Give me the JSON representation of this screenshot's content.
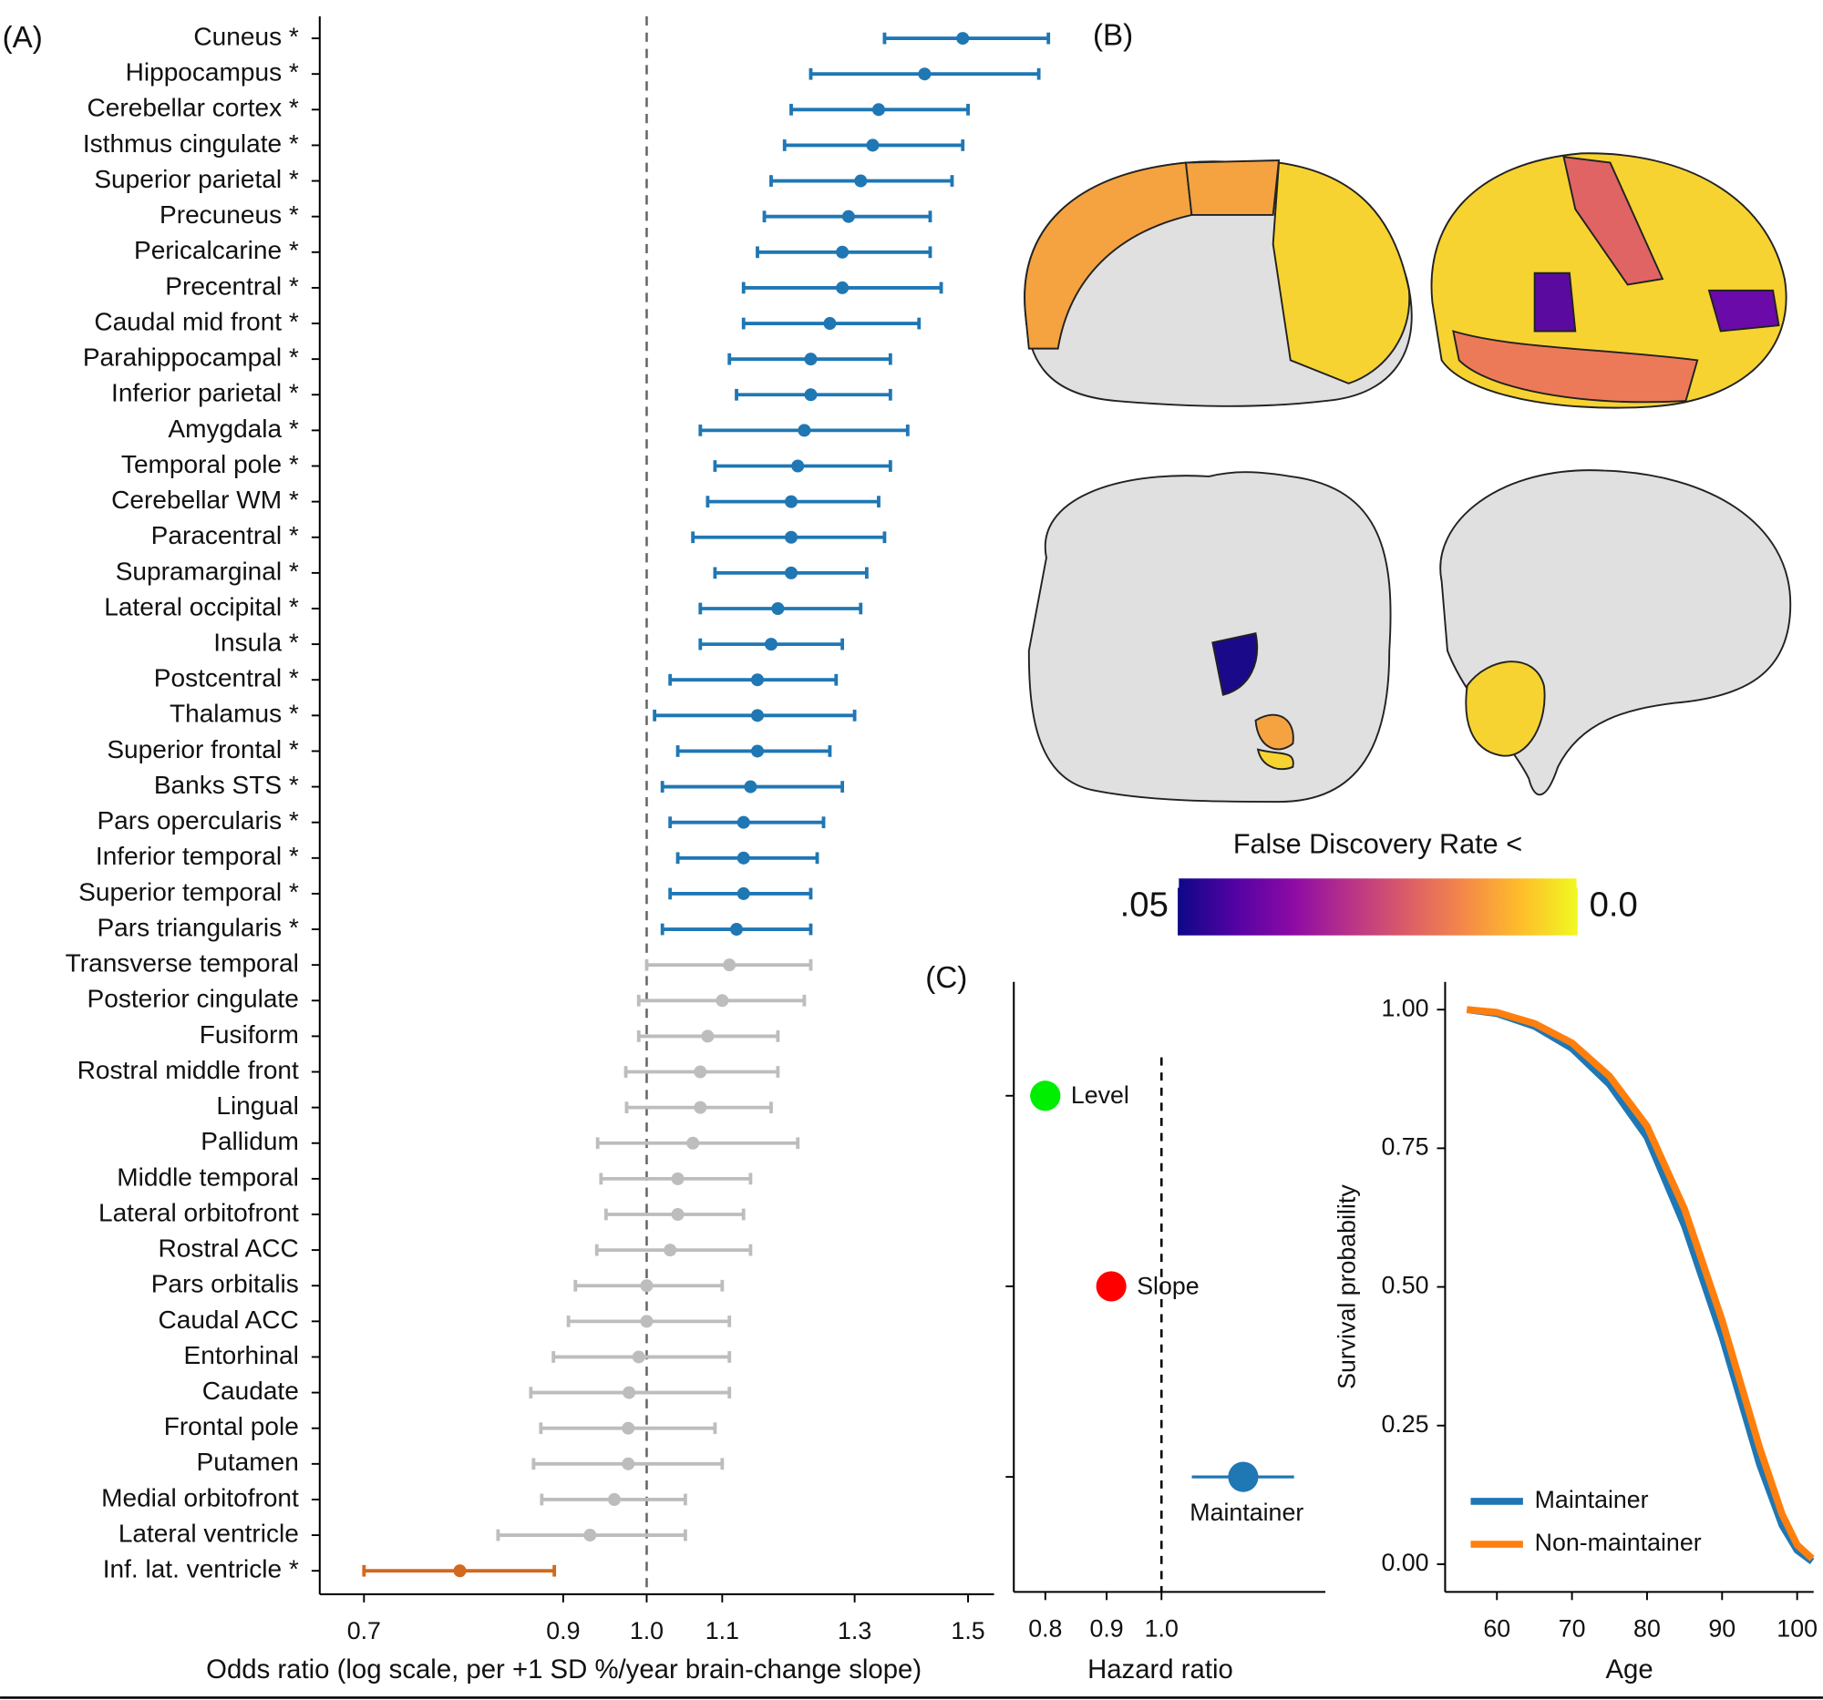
{
  "chart_data": [
    {
      "type": "forest",
      "panel": "(A)",
      "x_label": "Odds ratio (log scale, per +1 SD %/year brain-change slope)",
      "log_x": true,
      "xlim": [
        0.662,
        1.55
      ],
      "xticks": [
        0.7,
        0.9,
        {
          "value": 1,
          "label": "1.0"
        },
        1.1,
        1.3,
        1.5
      ],
      "reference": 1,
      "categories": [
        "Cuneus *",
        "Hippocampus *",
        "Cerebellar cortex *",
        "Isthmus cingulate *",
        "Superior parietal *",
        "Precuneus *",
        "Pericalcarine *",
        "Precentral *",
        "Caudal mid front *",
        "Parahippocampal *",
        "Inferior parietal *",
        "Amygdala *",
        "Temporal pole *",
        "Cerebellar WM *",
        "Paracentral *",
        "Supramarginal *",
        "Lateral occipital *",
        "Insula *",
        "Postcentral *",
        "Thalamus *",
        "Superior frontal *",
        "Banks STS *",
        "Pars opercularis *",
        "Inferior temporal *",
        "Superior temporal *",
        "Pars triangularis *",
        "Transverse temporal",
        "Posterior cingulate",
        "Fusiform",
        "Rostral middle front",
        "Lingual",
        "Pallidum",
        "Middle temporal",
        "Lateral orbitofront",
        "Rostral ACC",
        "Pars orbitalis",
        "Caudal ACC",
        "Entorhinal",
        "Caudate",
        "Frontal pole",
        "Putamen",
        "Medial orbitofront",
        "Lateral ventricle",
        "Inf. lat. ventricle *"
      ],
      "values": [
        1.49,
        1.42,
        1.34,
        1.33,
        1.31,
        1.29,
        1.28,
        1.28,
        1.26,
        1.23,
        1.23,
        1.22,
        1.21,
        1.2,
        1.2,
        1.2,
        1.18,
        1.17,
        1.15,
        1.15,
        1.15,
        1.14,
        1.13,
        1.13,
        1.13,
        1.12,
        1.11,
        1.1,
        1.08,
        1.07,
        1.07,
        1.06,
        1.04,
        1.04,
        1.03,
        1.0,
        1.0,
        0.99,
        0.978,
        0.977,
        0.977,
        0.96,
        0.931,
        0.79
      ],
      "ci_low": [
        1.35,
        1.23,
        1.2,
        1.19,
        1.17,
        1.16,
        1.15,
        1.13,
        1.13,
        1.11,
        1.12,
        1.07,
        1.09,
        1.08,
        1.06,
        1.09,
        1.07,
        1.07,
        1.03,
        1.01,
        1.04,
        1.02,
        1.03,
        1.04,
        1.03,
        1.02,
        1.0,
        0.99,
        0.99,
        0.974,
        0.975,
        0.94,
        0.944,
        0.95,
        0.939,
        0.914,
        0.906,
        0.889,
        0.864,
        0.875,
        0.867,
        0.876,
        0.829,
        0.7
      ],
      "ci_high": [
        1.66,
        1.64,
        1.5,
        1.49,
        1.47,
        1.43,
        1.43,
        1.45,
        1.41,
        1.36,
        1.36,
        1.39,
        1.36,
        1.34,
        1.35,
        1.32,
        1.31,
        1.28,
        1.27,
        1.3,
        1.26,
        1.28,
        1.25,
        1.24,
        1.23,
        1.23,
        1.23,
        1.22,
        1.18,
        1.18,
        1.17,
        1.21,
        1.14,
        1.13,
        1.14,
        1.1,
        1.11,
        1.11,
        1.11,
        1.09,
        1.1,
        1.05,
        1.05,
        0.89
      ],
      "colors": [
        "#1f77b4",
        "#1f77b4",
        "#1f77b4",
        "#1f77b4",
        "#1f77b4",
        "#1f77b4",
        "#1f77b4",
        "#1f77b4",
        "#1f77b4",
        "#1f77b4",
        "#1f77b4",
        "#1f77b4",
        "#1f77b4",
        "#1f77b4",
        "#1f77b4",
        "#1f77b4",
        "#1f77b4",
        "#1f77b4",
        "#1f77b4",
        "#1f77b4",
        "#1f77b4",
        "#1f77b4",
        "#1f77b4",
        "#1f77b4",
        "#1f77b4",
        "#1f77b4",
        "#bdbdbd",
        "#bdbdbd",
        "#bdbdbd",
        "#bdbdbd",
        "#bdbdbd",
        "#bdbdbd",
        "#bdbdbd",
        "#bdbdbd",
        "#bdbdbd",
        "#bdbdbd",
        "#bdbdbd",
        "#bdbdbd",
        "#bdbdbd",
        "#bdbdbd",
        "#bdbdbd",
        "#bdbdbd",
        "#bdbdbd",
        "#d2691e"
      ]
    },
    {
      "type": "colorbar",
      "panel": "(B)",
      "title": "False Discovery Rate <",
      "clim": [
        0.05,
        0
      ],
      "ticks": [
        {
          "value": 0.05,
          "label": ".05"
        },
        {
          "value": 0,
          "label": "0.0"
        }
      ],
      "colors": [
        "#0d0887",
        "#5302a3",
        "#8b0aa5",
        "#b83289",
        "#db5c68",
        "#f48849",
        "#febd2a",
        "#f0f921"
      ]
    },
    {
      "type": "hazard",
      "panel": "(C)",
      "x_label": "Hazard ratio",
      "log_x": true,
      "xlim": [
        0.753,
        1.37
      ],
      "xticks": [
        0.8,
        0.9,
        {
          "value": 1,
          "label": "1.0"
        }
      ],
      "reference": 1,
      "categories": [
        "Level",
        "Slope",
        "Maintainer"
      ],
      "values": [
        0.8,
        0.908,
        1.17
      ],
      "ci_low": [
        0.777,
        null,
        1.06
      ],
      "ci_high": [
        0.823,
        null,
        1.29
      ],
      "colors": [
        "#00ee00",
        "#ff0000",
        "#1f77b4"
      ]
    },
    {
      "type": "line",
      "x_label": "Age",
      "y_label": "Survival probability",
      "xlim": [
        53.1,
        102.2
      ],
      "ylim": [
        -0.05,
        1.05
      ],
      "xticks": [
        60,
        70,
        80,
        90,
        100
      ],
      "yticks": [
        {
          "value": 0,
          "label": "0.00"
        },
        {
          "value": 0.25,
          "label": "0.25"
        },
        {
          "value": 0.5,
          "label": "0.50"
        },
        {
          "value": 0.75,
          "label": "0.75"
        },
        {
          "value": 1,
          "label": "1.00"
        }
      ],
      "legend": "lower left",
      "x": [
        56,
        60,
        65,
        70,
        75,
        80,
        85,
        90,
        95,
        98,
        100,
        102
      ],
      "series": [
        {
          "name": "Maintainer",
          "color": "#1f77b4",
          "values": [
            1.0,
            0.993,
            0.97,
            0.93,
            0.865,
            0.77,
            0.61,
            0.41,
            0.18,
            0.07,
            0.025,
            0.005
          ]
        },
        {
          "name": "Non-maintainer",
          "color": "#ff7f0e",
          "values": [
            1.0,
            0.995,
            0.975,
            0.94,
            0.88,
            0.79,
            0.64,
            0.44,
            0.21,
            0.09,
            0.035,
            0.01
          ]
        }
      ]
    }
  ]
}
